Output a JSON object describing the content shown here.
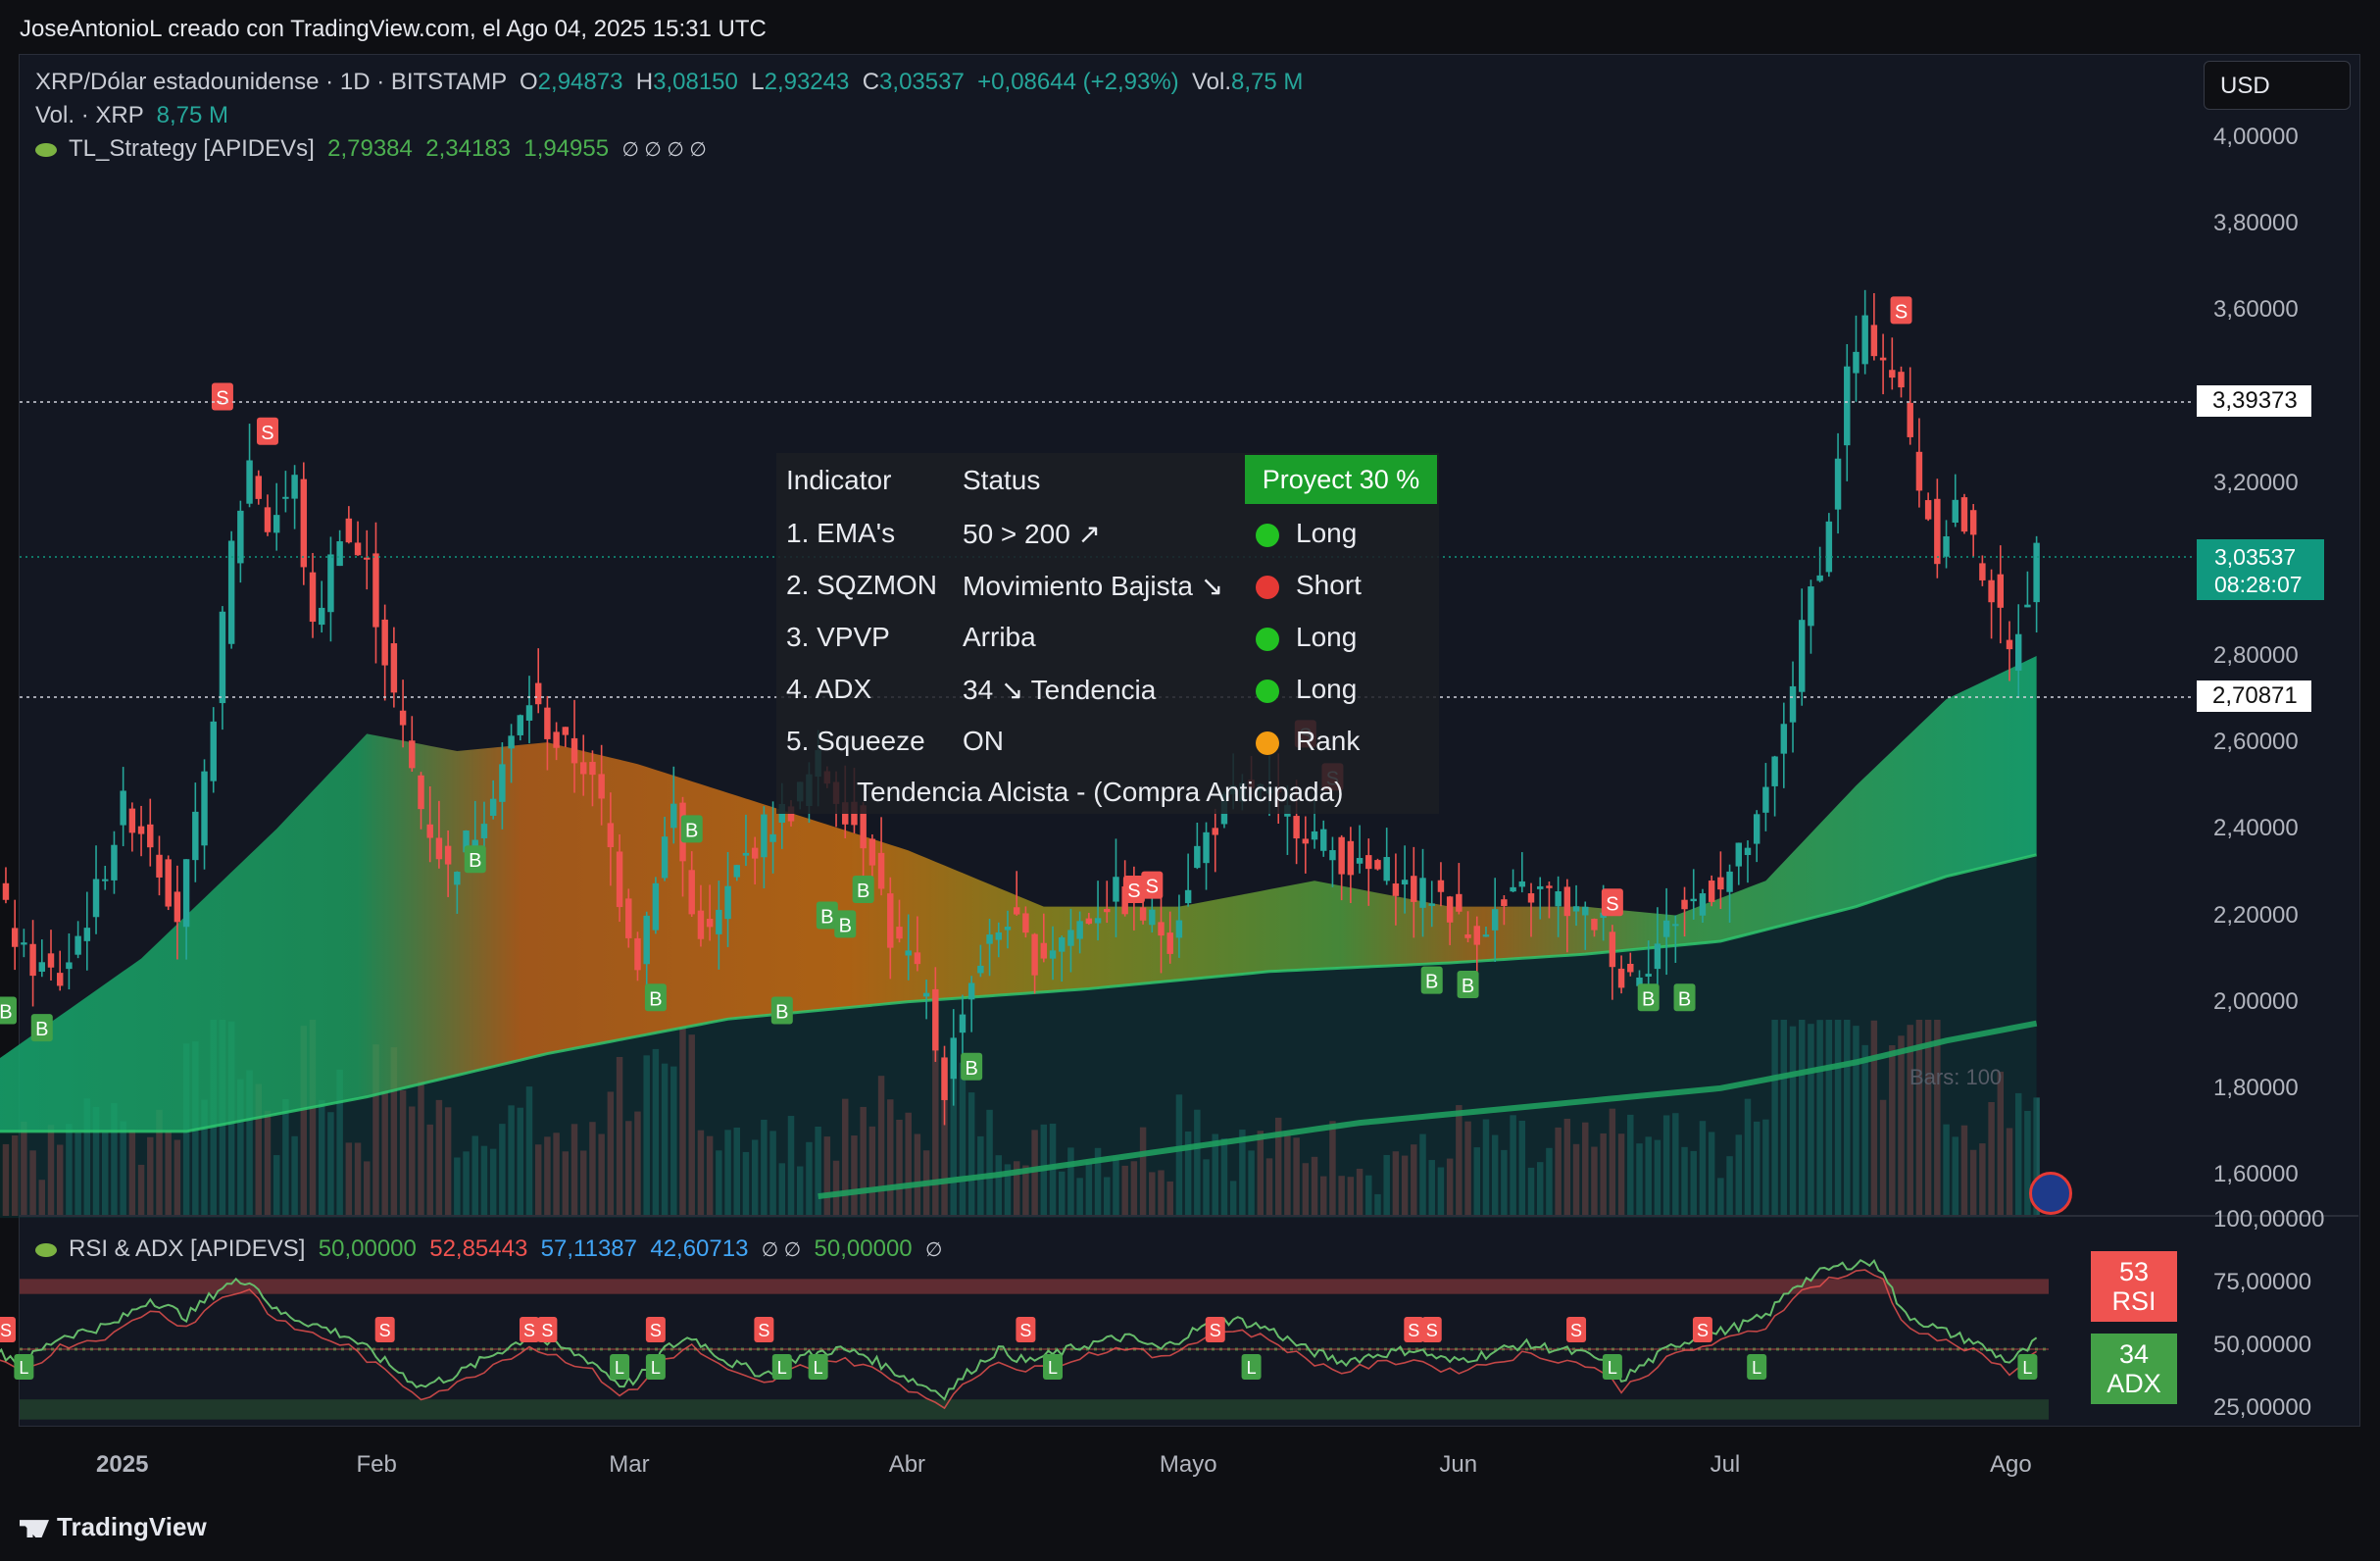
{
  "header": {
    "credit": "JoseAntonioL creado con TradingView.com, el Ago 04, 2025 15:31 UTC"
  },
  "legend": {
    "symbol": "XRP/Dólar estadounidense · 1D · BITSTAMP",
    "o_label": "O",
    "o": "2,94873",
    "h_label": "H",
    "h": "3,08150",
    "l_label": "L",
    "l": "2,93243",
    "c_label": "C",
    "c": "3,03537",
    "change": "+0,08644 (+2,93%)",
    "vol_label": "Vol.",
    "vol": "8,75 M",
    "vol2_label": "Vol. · XRP",
    "vol2": "8,75 M",
    "strategy_name": "TL_Strategy [APIDEVs]",
    "s1": "2,79384",
    "s2": "2,34183",
    "s3": "1,94955",
    "s_empty": "∅ ∅ ∅ ∅"
  },
  "currency_button": "USD",
  "price_axis": [
    "4,00000",
    "3,80000",
    "3,60000",
    "3,20000",
    "2,80000",
    "2,60000",
    "2,40000",
    "2,20000",
    "2,00000",
    "1,80000",
    "1,60000"
  ],
  "price_tags": {
    "line1": "3,39373",
    "line2": "2,70871",
    "last": "3,03537",
    "countdown": "08:28:07"
  },
  "bars_note": "Bars: 100",
  "table": {
    "headers": [
      "Indicator",
      "Status",
      "Proyect 30 %"
    ],
    "rows": [
      {
        "ind": "1. EMA's",
        "status": "50 > 200 ↗",
        "signal": "Long",
        "color": "#22c222"
      },
      {
        "ind": "2. SQZMON",
        "status": "Movimiento Bajista ↘",
        "signal": "Short",
        "color": "#e53935"
      },
      {
        "ind": "3. VPVP",
        "status": "Arriba",
        "signal": "Long",
        "color": "#22c222"
      },
      {
        "ind": "4. ADX",
        "status": "34 ↘ Tendencia",
        "signal": "Long",
        "color": "#22c222"
      },
      {
        "ind": "5. Squeeze",
        "status": "ON",
        "signal": "Rank",
        "color": "#f39c12"
      }
    ],
    "footer": "Tendencia Alcista - (Compra Anticipada)"
  },
  "rsi_panel": {
    "legend_name": "RSI & ADX [APIDEVS]",
    "v1": "50,00000",
    "v2": "52,85443",
    "v3": "57,11387",
    "v4": "42,60713",
    "e1": "∅ ∅",
    "v5": "50,00000",
    "e2": "∅",
    "axis": [
      "100,00000",
      "75,00000",
      "50,00000",
      "25,00000"
    ],
    "rsi_value": "53",
    "rsi_label": "RSI",
    "adx_value": "34",
    "adx_label": "ADX"
  },
  "x_axis": [
    "2025",
    "Feb",
    "Mar",
    "Abr",
    "Mayo",
    "Jun",
    "Jul",
    "Ago"
  ],
  "brand": "TradingView",
  "chart_data": {
    "type": "candlestick",
    "title": "XRP/Dólar estadounidense · 1D · BITSTAMP",
    "ylim": [
      1.5,
      4.05
    ],
    "y_ticks": [
      4.0,
      3.8,
      3.6,
      3.2,
      2.8,
      2.6,
      2.4,
      2.2,
      2.0,
      1.8,
      1.6
    ],
    "x_ticks": [
      "2025",
      "Feb",
      "Mar",
      "Abr",
      "Mayo",
      "Jun",
      "Jul",
      "Ago"
    ],
    "x_range_days": [
      -12,
      217
    ],
    "x_tick_days": [
      0,
      31,
      59,
      90,
      120,
      151,
      181,
      212
    ],
    "close_path": [
      [
        -12,
        2.3
      ],
      [
        -8,
        2.1
      ],
      [
        -4,
        2.05
      ],
      [
        0,
        2.25
      ],
      [
        3,
        2.45
      ],
      [
        6,
        2.38
      ],
      [
        9,
        2.2
      ],
      [
        12,
        2.5
      ],
      [
        15,
        3.05
      ],
      [
        17,
        3.25
      ],
      [
        19,
        3.1
      ],
      [
        22,
        3.2
      ],
      [
        24,
        2.85
      ],
      [
        27,
        3.1
      ],
      [
        30,
        3.0
      ],
      [
        33,
        2.7
      ],
      [
        36,
        2.45
      ],
      [
        39,
        2.3
      ],
      [
        42,
        2.4
      ],
      [
        45,
        2.55
      ],
      [
        48,
        2.7
      ],
      [
        51,
        2.6
      ],
      [
        54,
        2.55
      ],
      [
        56,
        2.45
      ],
      [
        58,
        2.25
      ],
      [
        60,
        2.1
      ],
      [
        62,
        2.3
      ],
      [
        64,
        2.45
      ],
      [
        66,
        2.2
      ],
      [
        68,
        2.15
      ],
      [
        71,
        2.3
      ],
      [
        74,
        2.4
      ],
      [
        77,
        2.45
      ],
      [
        80,
        2.55
      ],
      [
        83,
        2.45
      ],
      [
        86,
        2.35
      ],
      [
        88,
        2.15
      ],
      [
        90,
        2.1
      ],
      [
        92,
        2.0
      ],
      [
        94,
        1.8
      ],
      [
        96,
        2.0
      ],
      [
        98,
        2.1
      ],
      [
        101,
        2.2
      ],
      [
        104,
        2.1
      ],
      [
        107,
        2.15
      ],
      [
        110,
        2.2
      ],
      [
        113,
        2.25
      ],
      [
        116,
        2.2
      ],
      [
        119,
        2.15
      ],
      [
        122,
        2.35
      ],
      [
        125,
        2.45
      ],
      [
        128,
        2.5
      ],
      [
        131,
        2.45
      ],
      [
        134,
        2.4
      ],
      [
        137,
        2.35
      ],
      [
        140,
        2.3
      ],
      [
        143,
        2.3
      ],
      [
        146,
        2.25
      ],
      [
        149,
        2.25
      ],
      [
        152,
        2.15
      ],
      [
        155,
        2.2
      ],
      [
        158,
        2.25
      ],
      [
        161,
        2.25
      ],
      [
        164,
        2.2
      ],
      [
        167,
        2.18
      ],
      [
        169,
        2.05
      ],
      [
        172,
        2.1
      ],
      [
        175,
        2.2
      ],
      [
        178,
        2.25
      ],
      [
        181,
        2.3
      ],
      [
        184,
        2.4
      ],
      [
        186,
        2.55
      ],
      [
        188,
        2.75
      ],
      [
        190,
        2.95
      ],
      [
        192,
        3.1
      ],
      [
        194,
        3.45
      ],
      [
        196,
        3.55
      ],
      [
        198,
        3.5
      ],
      [
        200,
        3.4
      ],
      [
        202,
        3.2
      ],
      [
        204,
        3.05
      ],
      [
        206,
        3.15
      ],
      [
        208,
        3.05
      ],
      [
        210,
        2.95
      ],
      [
        212,
        2.8
      ],
      [
        214,
        2.95
      ],
      [
        215,
        3.035
      ]
    ],
    "band_upper": [
      [
        -12,
        1.85
      ],
      [
        5,
        2.1
      ],
      [
        20,
        2.4
      ],
      [
        30,
        2.62
      ],
      [
        40,
        2.58
      ],
      [
        50,
        2.6
      ],
      [
        60,
        2.55
      ],
      [
        75,
        2.45
      ],
      [
        90,
        2.35
      ],
      [
        105,
        2.22
      ],
      [
        120,
        2.22
      ],
      [
        135,
        2.28
      ],
      [
        150,
        2.22
      ],
      [
        165,
        2.22
      ],
      [
        175,
        2.2
      ],
      [
        185,
        2.28
      ],
      [
        195,
        2.5
      ],
      [
        205,
        2.7
      ],
      [
        215,
        2.8
      ]
    ],
    "band_mid": [
      [
        -12,
        1.7
      ],
      [
        10,
        1.7
      ],
      [
        30,
        1.78
      ],
      [
        50,
        1.88
      ],
      [
        70,
        1.96
      ],
      [
        90,
        2.0
      ],
      [
        110,
        2.03
      ],
      [
        130,
        2.07
      ],
      [
        150,
        2.09
      ],
      [
        165,
        2.11
      ],
      [
        180,
        2.14
      ],
      [
        195,
        2.22
      ],
      [
        205,
        2.29
      ],
      [
        215,
        2.34
      ]
    ],
    "ema_long": [
      [
        80,
        1.55
      ],
      [
        100,
        1.6
      ],
      [
        120,
        1.66
      ],
      [
        140,
        1.72
      ],
      [
        160,
        1.76
      ],
      [
        180,
        1.8
      ],
      [
        195,
        1.86
      ],
      [
        205,
        1.91
      ],
      [
        215,
        1.95
      ]
    ],
    "signals": [
      {
        "t": -10,
        "p": 1.98,
        "label": "B"
      },
      {
        "t": -6,
        "p": 1.94,
        "label": "B"
      },
      {
        "t": 14,
        "p": 3.4,
        "label": "S"
      },
      {
        "t": 19,
        "p": 3.32,
        "label": "S"
      },
      {
        "t": 42,
        "p": 2.33,
        "label": "B"
      },
      {
        "t": 62,
        "p": 2.01,
        "label": "B"
      },
      {
        "t": 66,
        "p": 2.4,
        "label": "B"
      },
      {
        "t": 76,
        "p": 1.98,
        "label": "B"
      },
      {
        "t": 81,
        "p": 2.2,
        "label": "B"
      },
      {
        "t": 83,
        "p": 2.18,
        "label": "B"
      },
      {
        "t": 85,
        "p": 2.26,
        "label": "B"
      },
      {
        "t": 97,
        "p": 1.85,
        "label": "B"
      },
      {
        "t": 115,
        "p": 2.26,
        "label": "S"
      },
      {
        "t": 117,
        "p": 2.27,
        "label": "S"
      },
      {
        "t": 134,
        "p": 2.62,
        "label": "S"
      },
      {
        "t": 137,
        "p": 2.52,
        "label": "S"
      },
      {
        "t": 148,
        "p": 2.05,
        "label": "B"
      },
      {
        "t": 152,
        "p": 2.04,
        "label": "B"
      },
      {
        "t": 168,
        "p": 2.23,
        "label": "S"
      },
      {
        "t": 172,
        "p": 2.01,
        "label": "B"
      },
      {
        "t": 176,
        "p": 2.01,
        "label": "B"
      },
      {
        "t": 200,
        "p": 3.6,
        "label": "S"
      }
    ],
    "rsi_ylim": [
      0,
      100
    ],
    "rsi_path": [
      [
        -12,
        50
      ],
      [
        -8,
        45
      ],
      [
        -4,
        55
      ],
      [
        2,
        60
      ],
      [
        6,
        70
      ],
      [
        10,
        63
      ],
      [
        14,
        75
      ],
      [
        17,
        78
      ],
      [
        20,
        65
      ],
      [
        24,
        60
      ],
      [
        28,
        55
      ],
      [
        32,
        45
      ],
      [
        36,
        35
      ],
      [
        40,
        40
      ],
      [
        44,
        48
      ],
      [
        48,
        55
      ],
      [
        52,
        50
      ],
      [
        55,
        45
      ],
      [
        58,
        36
      ],
      [
        60,
        38
      ],
      [
        63,
        50
      ],
      [
        66,
        55
      ],
      [
        70,
        45
      ],
      [
        74,
        40
      ],
      [
        78,
        47
      ],
      [
        82,
        50
      ],
      [
        85,
        48
      ],
      [
        88,
        42
      ],
      [
        92,
        35
      ],
      [
        94,
        32
      ],
      [
        97,
        42
      ],
      [
        100,
        50
      ],
      [
        103,
        45
      ],
      [
        106,
        48
      ],
      [
        110,
        52
      ],
      [
        114,
        55
      ],
      [
        118,
        50
      ],
      [
        122,
        58
      ],
      [
        126,
        62
      ],
      [
        130,
        58
      ],
      [
        134,
        50
      ],
      [
        138,
        45
      ],
      [
        142,
        48
      ],
      [
        146,
        50
      ],
      [
        150,
        45
      ],
      [
        154,
        48
      ],
      [
        158,
        52
      ],
      [
        162,
        50
      ],
      [
        166,
        47
      ],
      [
        169,
        38
      ],
      [
        172,
        45
      ],
      [
        175,
        52
      ],
      [
        178,
        55
      ],
      [
        181,
        58
      ],
      [
        185,
        63
      ],
      [
        188,
        75
      ],
      [
        192,
        82
      ],
      [
        196,
        85
      ],
      [
        198,
        82
      ],
      [
        200,
        65
      ],
      [
        204,
        58
      ],
      [
        208,
        53
      ],
      [
        212,
        45
      ],
      [
        214,
        50
      ],
      [
        215,
        53
      ]
    ]
  }
}
